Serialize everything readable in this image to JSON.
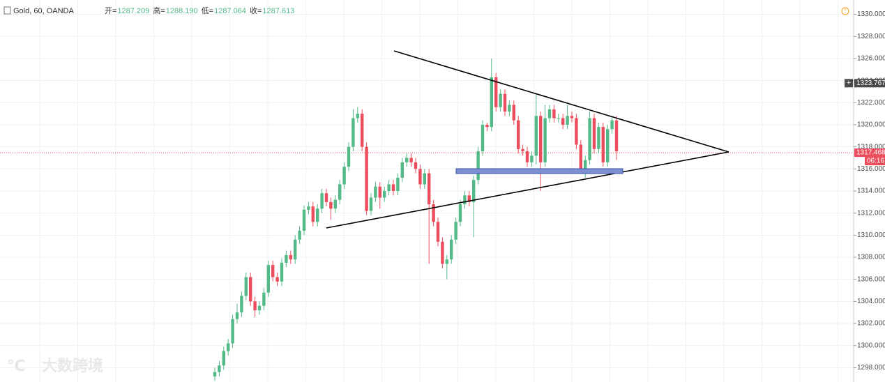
{
  "chart_data": {
    "type": "candlestick",
    "title": "Gold, 60, OANDA",
    "legend_values": [
      {
        "name": "开=",
        "value": "1287.209"
      },
      {
        "name": "高=",
        "value": "1288.190"
      },
      {
        "name": "低=",
        "value": "1287.064"
      },
      {
        "name": "收=",
        "value": "1287.613"
      }
    ],
    "up_color": "#53b987",
    "down_color": "#eb4d5c",
    "open": [
      1297.2,
      1297.6,
      1298.2,
      1299.5,
      1300.2,
      1302.4,
      1303.0,
      1304.5,
      1306.2,
      1304.0,
      1303.2,
      1303.6,
      1304.8,
      1307.3,
      1306.2,
      1305.8,
      1307.5,
      1308.2,
      1307.8,
      1309.6,
      1310.4,
      1312.3,
      1312.6,
      1311.2,
      1312.4,
      1313.8,
      1313.0,
      1312.4,
      1313.2,
      1314.6,
      1316.2,
      1318.0,
      1320.6,
      1321.0,
      1318.0,
      1312.2,
      1313.4,
      1314.4,
      1313.4,
      1314.0,
      1314.6,
      1314.0,
      1315.2,
      1316.6,
      1317.0,
      1316.6,
      1316.0,
      1314.6,
      1315.6,
      1312.8,
      1311.2,
      1309.4,
      1307.4,
      1307.8,
      1309.6,
      1311.2,
      1312.8,
      1313.6,
      1313.0,
      1315.0,
      1317.6,
      1320.0,
      1319.8,
      1324.3,
      1321.6,
      1322.8,
      1321.2,
      1321.8,
      1320.4,
      1317.8,
      1317.6,
      1316.6,
      1317.2,
      1320.8,
      1316.6,
      1320.6,
      1321.4,
      1320.6,
      1320.6,
      1320.0,
      1320.8,
      1320.6,
      1318.2,
      1316.0,
      1316.8,
      1320.6,
      1317.8,
      1319.8,
      1316.6,
      1319.6,
      1320.4
    ],
    "high": [
      1298.0,
      1298.6,
      1299.9,
      1300.6,
      1302.8,
      1303.8,
      1304.9,
      1306.6,
      1306.6,
      1304.4,
      1304.0,
      1305.2,
      1307.7,
      1307.7,
      1306.6,
      1307.9,
      1308.6,
      1308.6,
      1310.0,
      1310.8,
      1312.7,
      1313.0,
      1313.0,
      1312.8,
      1314.2,
      1314.2,
      1313.4,
      1313.6,
      1315.0,
      1316.6,
      1318.4,
      1321.4,
      1321.6,
      1321.4,
      1318.4,
      1313.8,
      1314.8,
      1314.8,
      1314.4,
      1315.0,
      1315.0,
      1315.6,
      1317.0,
      1317.4,
      1317.4,
      1317.0,
      1316.4,
      1316.0,
      1316.0,
      1313.2,
      1311.6,
      1309.8,
      1308.2,
      1310.0,
      1311.6,
      1313.2,
      1314.0,
      1314.0,
      1315.4,
      1318.0,
      1320.4,
      1320.2,
      1326.0,
      1324.7,
      1323.2,
      1323.2,
      1322.2,
      1322.2,
      1320.8,
      1318.2,
      1318.0,
      1317.6,
      1322.8,
      1321.2,
      1321.8,
      1321.8,
      1321.8,
      1321.0,
      1321.0,
      1321.8,
      1321.2,
      1321.0,
      1318.6,
      1317.2,
      1321.2,
      1321.0,
      1320.2,
      1320.2,
      1320.0,
      1320.8,
      1320.8
    ],
    "low": [
      1296.8,
      1297.2,
      1297.8,
      1299.1,
      1299.8,
      1302.0,
      1302.6,
      1304.1,
      1303.6,
      1302.6,
      1302.8,
      1303.2,
      1304.4,
      1305.8,
      1305.4,
      1305.4,
      1307.1,
      1307.4,
      1307.4,
      1309.2,
      1310.0,
      1311.9,
      1310.8,
      1310.8,
      1312.0,
      1312.6,
      1311.4,
      1312.0,
      1312.8,
      1314.2,
      1315.8,
      1317.6,
      1320.2,
      1317.6,
      1311.8,
      1311.8,
      1313.0,
      1312.4,
      1313.0,
      1313.6,
      1313.6,
      1313.6,
      1314.8,
      1316.2,
      1316.2,
      1315.6,
      1314.2,
      1314.2,
      1307.4,
      1310.8,
      1309.0,
      1307.0,
      1306.0,
      1307.4,
      1309.2,
      1310.8,
      1312.4,
      1312.6,
      1309.8,
      1314.6,
      1317.2,
      1319.4,
      1319.4,
      1321.2,
      1321.2,
      1320.8,
      1320.8,
      1320.0,
      1317.4,
      1317.2,
      1316.2,
      1316.2,
      1316.4,
      1314.0,
      1316.2,
      1320.2,
      1320.2,
      1320.2,
      1319.6,
      1319.6,
      1320.2,
      1317.8,
      1315.6,
      1315.2,
      1316.4,
      1317.4,
      1317.4,
      1316.2,
      1316.2,
      1319.2,
      1316.8
    ],
    "close": [
      1297.6,
      1298.2,
      1299.5,
      1300.2,
      1302.4,
      1303.0,
      1304.5,
      1306.2,
      1304.0,
      1303.2,
      1303.6,
      1304.8,
      1307.3,
      1306.2,
      1305.8,
      1307.5,
      1308.2,
      1307.8,
      1309.6,
      1310.4,
      1312.3,
      1312.6,
      1311.2,
      1312.4,
      1313.8,
      1313.0,
      1312.4,
      1313.2,
      1314.6,
      1316.2,
      1318.0,
      1320.6,
      1321.0,
      1318.0,
      1312.2,
      1313.4,
      1314.4,
      1313.4,
      1314.0,
      1314.6,
      1314.0,
      1315.2,
      1316.6,
      1317.0,
      1316.6,
      1316.0,
      1314.6,
      1315.6,
      1312.8,
      1311.2,
      1309.4,
      1307.4,
      1307.8,
      1309.6,
      1311.2,
      1312.8,
      1313.6,
      1313.0,
      1315.0,
      1317.6,
      1320.0,
      1319.8,
      1324.3,
      1321.6,
      1322.8,
      1321.2,
      1321.8,
      1320.4,
      1317.8,
      1317.6,
      1316.6,
      1317.2,
      1320.8,
      1316.6,
      1320.6,
      1321.4,
      1320.6,
      1320.6,
      1320.0,
      1320.8,
      1320.6,
      1318.2,
      1316.0,
      1316.8,
      1320.6,
      1317.8,
      1319.8,
      1316.6,
      1319.6,
      1320.4,
      1317.6
    ],
    "ylim": [
      1296.7,
      1331.3
    ],
    "yticks": [
      {
        "value": 1298,
        "label": "1298.000"
      },
      {
        "value": 1300,
        "label": "1300.000"
      },
      {
        "value": 1302,
        "label": "1302.000"
      },
      {
        "value": 1304,
        "label": "1304.000"
      },
      {
        "value": 1306,
        "label": "1306.000"
      },
      {
        "value": 1308,
        "label": "1308.000"
      },
      {
        "value": 1310,
        "label": "1310.000"
      },
      {
        "value": 1312,
        "label": "1312.000"
      },
      {
        "value": 1314,
        "label": "1314.000"
      },
      {
        "value": 1316,
        "label": "1316.000"
      },
      {
        "value": 1318,
        "label": "1318.000"
      },
      {
        "value": 1320,
        "label": "1320.000"
      },
      {
        "value": 1322,
        "label": "1322.000"
      },
      {
        "value": 1324,
        "label": "1324.000"
      },
      {
        "value": 1326,
        "label": "1326.000"
      },
      {
        "value": 1328,
        "label": "1328.000"
      },
      {
        "value": 1330,
        "label": "1330.000"
      }
    ],
    "grid": true,
    "crosshair_price": 1323.767,
    "last_price": 1317.468,
    "countdown": "06:16",
    "watermark": "大数跨境"
  }
}
